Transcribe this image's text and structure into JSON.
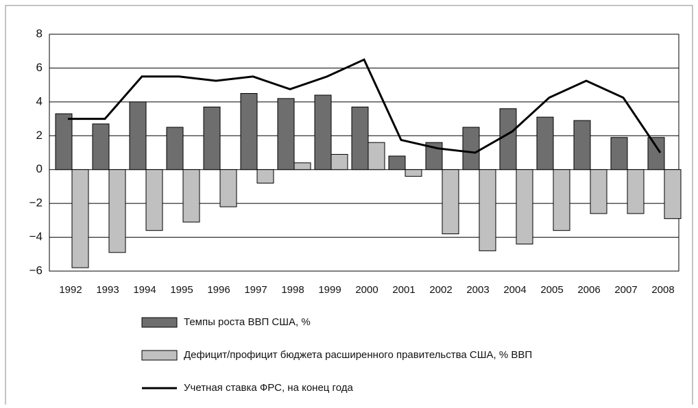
{
  "chart_data": {
    "type": "bar_line",
    "categories": [
      "1992",
      "1993",
      "1994",
      "1995",
      "1996",
      "1997",
      "1998",
      "1999",
      "2000",
      "2001",
      "2002",
      "2003",
      "2004",
      "2005",
      "2006",
      "2007",
      "2008"
    ],
    "series": [
      {
        "name": "Темпы роста ВВП США, %",
        "type": "bar",
        "color": "#6e6e6e",
        "values": [
          3.3,
          2.7,
          4.0,
          2.5,
          3.7,
          4.5,
          4.2,
          4.4,
          3.7,
          0.8,
          1.6,
          2.5,
          3.6,
          3.1,
          2.9,
          1.9,
          1.9
        ]
      },
      {
        "name": "Дефицит/профицит бюджета расширенного правительства США, % ВВП",
        "type": "bar",
        "color": "#c0c0c0",
        "values": [
          -5.8,
          -4.9,
          -3.6,
          -3.1,
          -2.2,
          -0.8,
          0.4,
          0.9,
          1.6,
          -0.4,
          -3.8,
          -4.8,
          -4.4,
          -3.6,
          -2.6,
          -2.6,
          -2.9
        ]
      },
      {
        "name": "Учетная ставка ФРС, на конец года",
        "type": "line",
        "color": "#000000",
        "values": [
          3.0,
          3.0,
          5.5,
          5.5,
          5.25,
          5.5,
          4.75,
          5.5,
          6.5,
          1.75,
          1.25,
          1.0,
          2.25,
          4.25,
          5.25,
          4.25,
          1.0
        ]
      }
    ],
    "ylim": [
      -6,
      8
    ],
    "yticks": [
      {
        "value": -6,
        "label": "−6"
      },
      {
        "value": -4,
        "label": "−4"
      },
      {
        "value": -2,
        "label": "−2"
      },
      0,
      2,
      4,
      6,
      8
    ],
    "grid": true
  }
}
